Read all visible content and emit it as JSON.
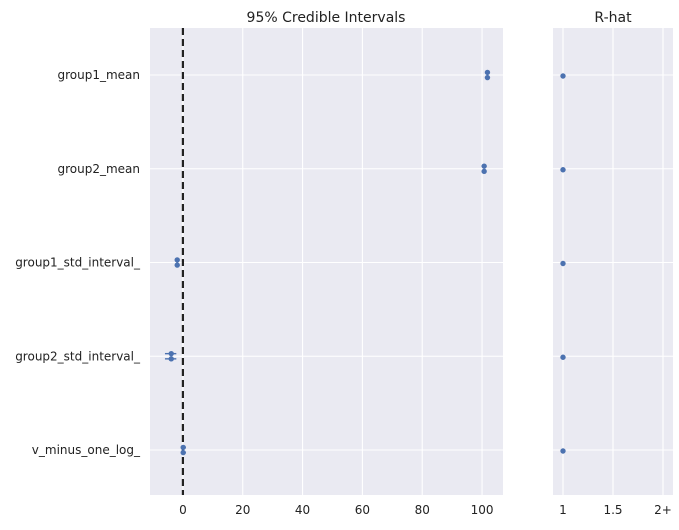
{
  "colors": {
    "panel_bg": "#EAEAF2",
    "grid": "#FFFFFF",
    "point": "#4C72B0",
    "reference_line": "#222222"
  },
  "chart_data": [
    {
      "type": "forest",
      "title": "95% Credible Intervals",
      "parameters": [
        "group1_mean",
        "group2_mean",
        "group1_std_interval_",
        "group2_std_interval_",
        "v_minus_one_log_"
      ],
      "x_ticks": [
        0,
        20,
        40,
        60,
        80,
        100
      ],
      "xlim": [
        -11,
        107
      ],
      "reference_line": 0,
      "grid": true,
      "chains": [
        {
          "values": [
            101.8,
            100.7,
            -1.9,
            -3.9,
            0.1
          ],
          "hpd_low": [
            101.6,
            100.5,
            -2.2,
            -6.0,
            -0.6
          ],
          "hpd_high": [
            102.0,
            100.9,
            -1.5,
            -2.2,
            1.0
          ]
        },
        {
          "values": [
            101.8,
            100.7,
            -1.9,
            -3.9,
            0.1
          ],
          "hpd_low": [
            101.6,
            100.5,
            -2.2,
            -6.0,
            -0.6
          ],
          "hpd_high": [
            102.0,
            100.9,
            -1.5,
            -2.2,
            1.0
          ]
        }
      ]
    },
    {
      "type": "scatter",
      "title": "R-hat",
      "parameters": [
        "group1_mean",
        "group2_mean",
        "group1_std_interval_",
        "group2_std_interval_",
        "v_minus_one_log_"
      ],
      "values": [
        1.0,
        1.0,
        1.0,
        1.0,
        1.0
      ],
      "x_ticks": [
        "1",
        "1.5",
        "2+"
      ],
      "x_tick_values": [
        1,
        1.5,
        2
      ],
      "xlim": [
        0.9,
        2.1
      ],
      "grid": true
    }
  ]
}
